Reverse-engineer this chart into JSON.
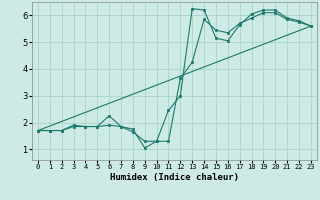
{
  "title": "",
  "xlabel": "Humidex (Indice chaleur)",
  "xlim": [
    -0.5,
    23.5
  ],
  "ylim": [
    0.6,
    6.5
  ],
  "xticks": [
    0,
    1,
    2,
    3,
    4,
    5,
    6,
    7,
    8,
    9,
    10,
    11,
    12,
    13,
    14,
    15,
    16,
    17,
    18,
    19,
    20,
    21,
    22,
    23
  ],
  "yticks": [
    1,
    2,
    3,
    4,
    5,
    6
  ],
  "bg_color": "#ceeae4",
  "line_color": "#1a7a6e",
  "grid_color": "#aad4cc",
  "line1_x": [
    0,
    1,
    2,
    3,
    4,
    5,
    6,
    7,
    8,
    9,
    10,
    11,
    12,
    13,
    14,
    15,
    16,
    17,
    18,
    19,
    20,
    21,
    22,
    23
  ],
  "line1_y": [
    1.7,
    1.7,
    1.7,
    1.9,
    1.85,
    1.85,
    2.25,
    1.85,
    1.75,
    1.05,
    1.3,
    2.45,
    3.0,
    6.25,
    6.2,
    5.15,
    5.05,
    5.65,
    6.05,
    6.2,
    6.2,
    5.9,
    5.8,
    5.6
  ],
  "line2_x": [
    0,
    1,
    2,
    3,
    4,
    5,
    6,
    7,
    8,
    9,
    10,
    11,
    12,
    13,
    14,
    15,
    16,
    17,
    18,
    19,
    20,
    21,
    22,
    23
  ],
  "line2_y": [
    1.7,
    1.7,
    1.7,
    1.85,
    1.85,
    1.85,
    1.9,
    1.85,
    1.65,
    1.3,
    1.3,
    1.3,
    3.65,
    4.25,
    5.85,
    5.45,
    5.35,
    5.7,
    5.9,
    6.1,
    6.1,
    5.85,
    5.75,
    5.6
  ],
  "line3_x": [
    0,
    23
  ],
  "line3_y": [
    1.7,
    5.6
  ]
}
